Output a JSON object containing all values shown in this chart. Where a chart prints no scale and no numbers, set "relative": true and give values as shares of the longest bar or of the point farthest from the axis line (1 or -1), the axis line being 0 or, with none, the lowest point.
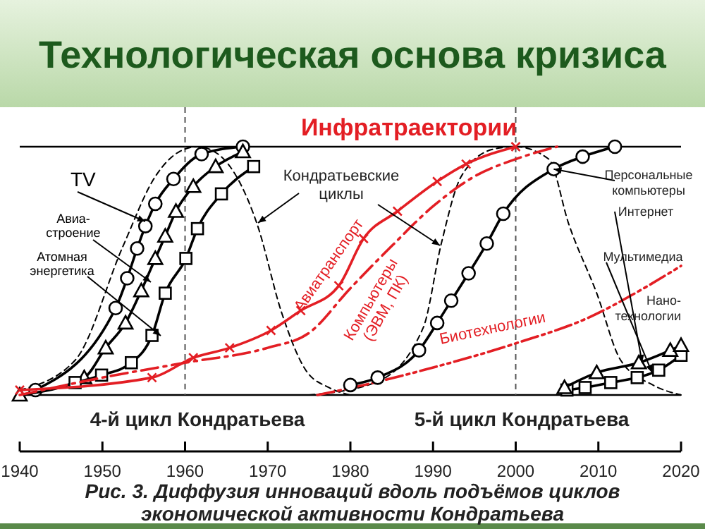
{
  "chart_data": {
    "type": "line",
    "title": "Технологическая основа кризиса",
    "subtitle": "Инфратраектории",
    "relative": true,
    "xlim": [
      1940,
      2020
    ],
    "xticks": [
      1940,
      1950,
      1960,
      1970,
      1980,
      1990,
      2000,
      2010,
      2020
    ],
    "tick_labels": "x",
    "grid": false,
    "ref_lines": [
      {
        "axis": "x",
        "value": 1960,
        "color": "#555555",
        "line_style": "dashed"
      },
      {
        "axis": "x",
        "value": 2000,
        "color": "#555555",
        "line_style": "dashed"
      }
    ],
    "annotations": [
      "4-й цикл Кондратьева",
      "5-й цикл Кондратьева",
      "Рис. 3. Диффузия инноваций вдоль подъёмов циклов\nэкономической активности Кондратьева",
      "Кондратьевские\nциклы",
      {
        "text": "Персональные\nкомпьютеры",
        "x": 2004.6,
        "y": 0.91
      },
      {
        "text": "Интернет",
        "x": 2015.3,
        "y": 0.13
      },
      {
        "text": "Мультимедиа",
        "x": 2016.5,
        "y": 0.09
      },
      "Нано-\nтехнологии"
    ],
    "series": [
      {
        "color": "#000000",
        "line_style": "dashed",
        "marker": "none",
        "x": [
          1940,
          1946.7,
          1952.5,
          1956.4,
          1959.3,
          1961.5,
          1964,
          1968.7,
          1971.7,
          1974.6,
          1977.4,
          1980
        ],
        "values": [
          0.02,
          0.14,
          0.6,
          0.88,
          0.98,
          1.0,
          0.97,
          0.69,
          0.33,
          0.1,
          0.03,
          0.0
        ]
      },
      {
        "color": "#000000",
        "line_style": "dashed",
        "marker": "none",
        "x": [
          1975,
          1983,
          1988.8,
          1991,
          1993.4,
          1997.3,
          2000,
          2004,
          2006.4,
          2009.8,
          2012.7,
          2016.6,
          2020
        ],
        "values": [
          0.0,
          0.05,
          0.27,
          0.61,
          0.88,
          0.99,
          1.0,
          0.95,
          0.69,
          0.41,
          0.14,
          0.04,
          0.0
        ]
      },
      {
        "name": "TV",
        "color": "#000000",
        "line_style": "solid",
        "marker": "circle",
        "x": [
          1941.9,
          1951.6,
          1953,
          1954.2,
          1955.2,
          1956.4,
          1958.6,
          1962,
          1967
        ],
        "values": [
          0.02,
          0.35,
          0.47,
          0.59,
          0.68,
          0.77,
          0.87,
          0.97,
          1.0
        ]
      },
      {
        "name": "Авиа-\nстроение",
        "color": "#000000",
        "line_style": "solid",
        "marker": "triangle",
        "x": [
          1940,
          1947.8,
          1950.4,
          1952.8,
          1954.7,
          1956.4,
          1957.6,
          1958.9,
          1961,
          1963.7,
          1967
        ],
        "values": [
          0.0,
          0.07,
          0.19,
          0.29,
          0.42,
          0.55,
          0.64,
          0.74,
          0.84,
          0.92,
          0.98
        ]
      },
      {
        "name": "Атомная\nэнергетика",
        "color": "#000000",
        "line_style": "solid",
        "marker": "square",
        "x": [
          1946.7,
          1949.9,
          1953.5,
          1956,
          1957.6,
          1960.1,
          1961.5,
          1964.4,
          1968.3
        ],
        "values": [
          0.05,
          0.08,
          0.13,
          0.24,
          0.41,
          0.55,
          0.67,
          0.81,
          0.92
        ]
      },
      {
        "name": "Авиатранспорт",
        "color": "#e31e24",
        "line_style": "solid",
        "marker": "cross",
        "x": [
          1940,
          1956,
          1961,
          1965.4,
          1970.4,
          1974,
          1978.6,
          1981.6,
          1985.7,
          1990.5,
          1994,
          2000
        ],
        "values": [
          0.02,
          0.07,
          0.15,
          0.19,
          0.26,
          0.34,
          0.44,
          0.63,
          0.74,
          0.86,
          0.93,
          1.0
        ]
      },
      {
        "name": "Компьютеры\n(ЭВМ, ПК)",
        "color": "#e31e24",
        "line_style": "dashdot",
        "marker": "none",
        "x": [
          1940,
          1950,
          1960,
          1970,
          1975,
          1980,
          1985,
          1990,
          1995,
          2000,
          2005
        ],
        "values": [
          0.0,
          0.07,
          0.13,
          0.19,
          0.25,
          0.43,
          0.6,
          0.76,
          0.88,
          0.95,
          1.0
        ]
      },
      {
        "name": "Биотехнологии",
        "color": "#e31e24",
        "line_style": "dashdotdot",
        "marker": "none",
        "x": [
          1976,
          1980.3,
          1988.8,
          2000.2,
          2008.7,
          2015.5,
          2020
        ],
        "values": [
          0.0,
          0.03,
          0.1,
          0.21,
          0.31,
          0.43,
          0.52
        ]
      },
      {
        "color": "#000000",
        "line_style": "solid",
        "marker": "circle",
        "x": [
          1980,
          1983.3,
          1988.3,
          1990.5,
          1992.2,
          1994.3,
          1996.5,
          1998.5,
          2004.6,
          2008.1,
          2012
        ],
        "values": [
          0.04,
          0.07,
          0.18,
          0.29,
          0.38,
          0.49,
          0.61,
          0.73,
          0.91,
          0.96,
          1.0
        ]
      },
      {
        "color": "#000000",
        "line_style": "solid",
        "marker": "square",
        "x": [
          2006.2,
          2008.4,
          2011.5,
          2014.7,
          2017.3,
          2020
        ],
        "values": [
          0.02,
          0.03,
          0.05,
          0.07,
          0.1,
          0.16
        ]
      },
      {
        "color": "#000000",
        "line_style": "solid",
        "marker": "triangle",
        "x": [
          2005.9,
          2009.8,
          2014.9,
          2018.7,
          2020
        ],
        "values": [
          0.03,
          0.09,
          0.13,
          0.18,
          0.2
        ]
      }
    ]
  }
}
